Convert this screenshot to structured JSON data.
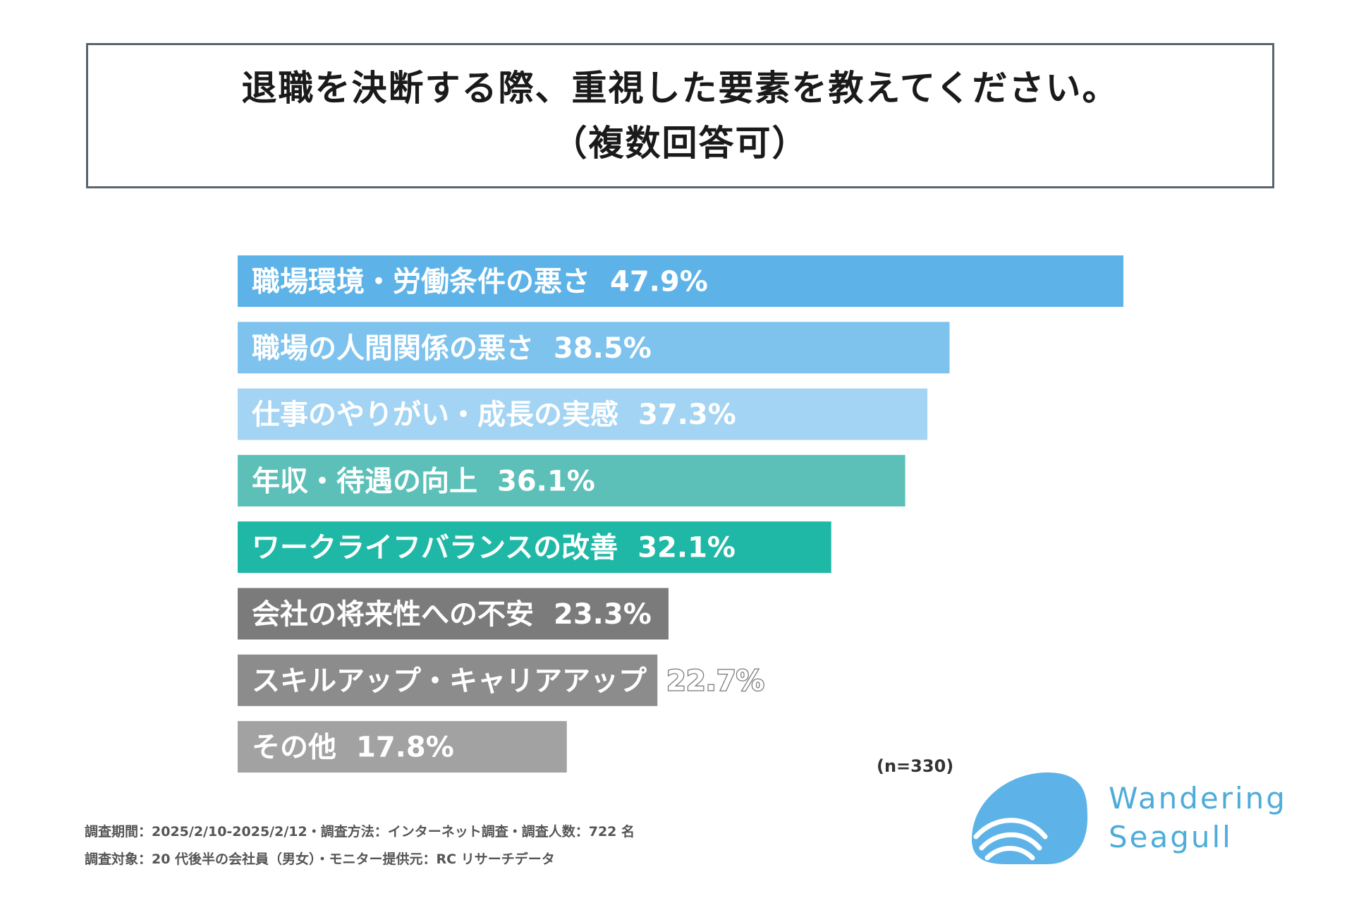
{
  "title": {
    "line1": "退職を決断する際、重視した要素を教えてください。",
    "line2": "（複数回答可）"
  },
  "chart_data": {
    "type": "bar",
    "orientation": "horizontal",
    "title": "退職を決断する際、重視した要素を教えてください。（複数回答可）",
    "categories": [
      "職場環境・労働条件の悪さ",
      "職場の人間関係の悪さ",
      "仕事のやりがい・成長の実感",
      "年収・待遇の向上",
      "ワークライフバランスの改善",
      "会社の将来性への不安",
      "スキルアップ・キャリアアップ",
      "その他"
    ],
    "values": [
      47.9,
      38.5,
      37.3,
      36.1,
      32.1,
      23.3,
      22.7,
      17.8
    ],
    "value_labels": [
      "47.9%",
      "38.5%",
      "37.3%",
      "36.1%",
      "32.1%",
      "23.3%",
      "22.7%",
      "17.8%"
    ],
    "colors": [
      "#5db3e8",
      "#7ec3ee",
      "#a3d4f3",
      "#5cc0b9",
      "#1fb8a6",
      "#7b7b7b",
      "#8c8c8c",
      "#a2a2a2"
    ],
    "xlim": [
      0,
      47.9
    ],
    "xlabel": "",
    "ylabel": "",
    "sample_size": "(n=330)"
  },
  "footnotes": {
    "line1": "調査期間：2025/2/10-2025/2/12・調査方法：インターネット調査・調査人数：722 名",
    "line2": "調査対象：20 代後半の会社員（男女）・モニター提供元：RC リサーチデータ"
  },
  "logo": {
    "line1": "Wandering",
    "line2": "Seagull",
    "color": "#5db3e8"
  }
}
